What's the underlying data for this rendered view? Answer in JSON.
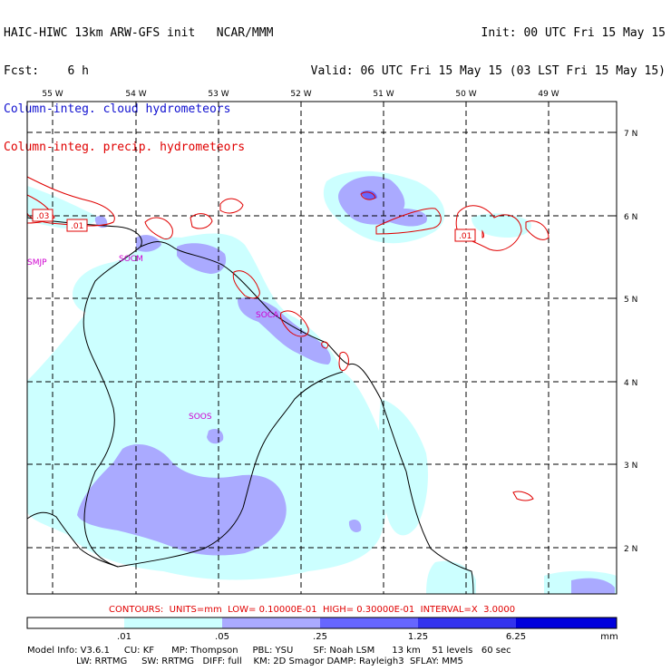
{
  "header": {
    "line1_left": "HAIC-HIWC 13km ARW-GFS init   NCAR/MMM",
    "line2_left": "Fcst:    6 h",
    "line1_right": "Init: 00 UTC Fri 15 May 15",
    "line2_right": "Valid: 06 UTC Fri 15 May 15 (03 LST Fri 15 May 15)",
    "field_blue": "Column-integ. cloud hydrometeors",
    "field_red": "Column-integ. precip. hydrometeors"
  },
  "map": {
    "longitudes": [
      "55 W",
      "54 W",
      "53 W",
      "52 W",
      "51 W",
      "50 W",
      "49 W"
    ],
    "latitudes": [
      "7 N",
      "6 N",
      "5 N",
      "4 N",
      "3 N",
      "2 N"
    ],
    "stations": [
      "SMJP",
      "SOCM",
      "SOCA",
      "SOOS"
    ],
    "contour_labels": [
      ".03",
      ".01",
      ".01"
    ]
  },
  "contours_text": "CONTOURS:  UNITS=mm  LOW= 0.10000E-01  HIGH= 0.30000E-01  INTERVAL=X  3.0000",
  "colorbar": {
    "ticks": [
      ".01",
      ".05",
      ".25",
      "1.25",
      "6.25"
    ],
    "unit": "mm",
    "colors": [
      "#ffffff",
      "#ccffff",
      "#aaaaff",
      "#6666ff",
      "#3333ee",
      "#0000dd"
    ]
  },
  "footer": {
    "line1": "Model Info: V3.6.1     CU: KF      MP: Thompson     PBL: YSU       SF: Noah LSM      13 km    51 levels   60 sec",
    "line2": "                 LW: RRTMG     SW: RRTMG   DIFF: full    KM: 2D Smagor DAMP: Rayleigh3  SFLAY: MM5"
  }
}
